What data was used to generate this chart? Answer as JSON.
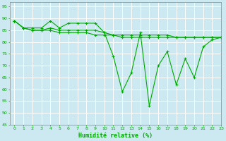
{
  "title": "",
  "xlabel": "Humidité relative (%)",
  "ylabel": "",
  "background_color": "#cce8f0",
  "grid_color": "#b0d8e8",
  "line_color": "#00aa00",
  "xlim": [
    -0.5,
    23
  ],
  "ylim": [
    45,
    97
  ],
  "yticks": [
    45,
    50,
    55,
    60,
    65,
    70,
    75,
    80,
    85,
    90,
    95
  ],
  "xticks": [
    0,
    1,
    2,
    3,
    4,
    5,
    6,
    7,
    8,
    9,
    10,
    11,
    12,
    13,
    14,
    15,
    16,
    17,
    18,
    19,
    20,
    21,
    22,
    23
  ],
  "series": [
    [
      89,
      86,
      86,
      86,
      89,
      86,
      88,
      88,
      88,
      88,
      84,
      74,
      59,
      67,
      84,
      53,
      70,
      76,
      62,
      73,
      65,
      78,
      81,
      82
    ],
    [
      89,
      86,
      85,
      85,
      86,
      85,
      85,
      85,
      85,
      85,
      84,
      83,
      83,
      83,
      83,
      83,
      83,
      83,
      82,
      82,
      82,
      82,
      82,
      82
    ],
    [
      89,
      86,
      85,
      85,
      85,
      84,
      84,
      84,
      84,
      83,
      83,
      83,
      82,
      82,
      82,
      82,
      82,
      82,
      82,
      82,
      82,
      82,
      82,
      82
    ]
  ]
}
